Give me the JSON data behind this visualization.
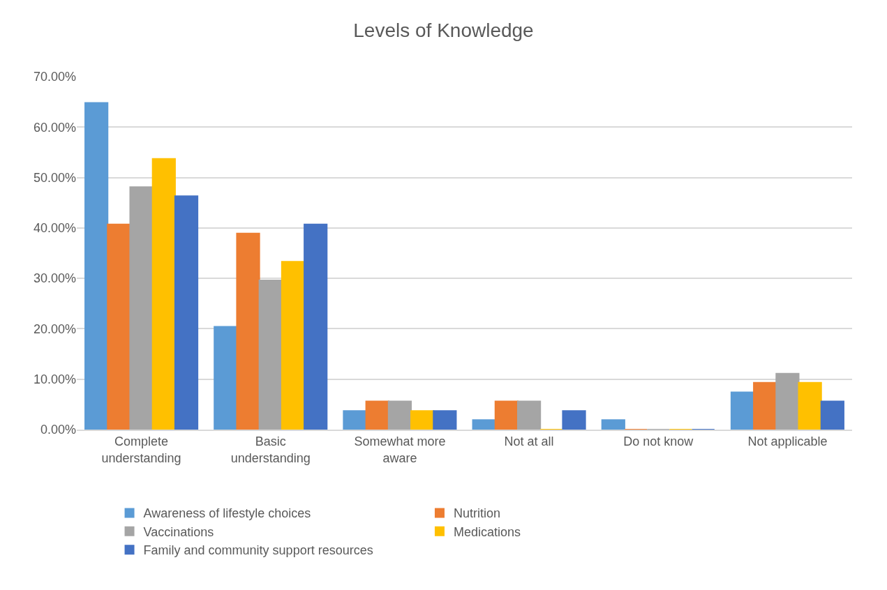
{
  "chart_data": {
    "type": "bar",
    "title": "Levels of Knowledge",
    "categories": [
      "Complete understanding",
      "Basic understanding",
      "Somewhat more aware",
      "Not at all",
      "Do not know",
      "Not applicable"
    ],
    "series": [
      {
        "name": "Awareness of lifestyle choices",
        "color": "#5b9bd5",
        "values": [
          64.8,
          20.4,
          3.7,
          1.9,
          1.9,
          7.4
        ]
      },
      {
        "name": "Nutrition",
        "color": "#ed7d31",
        "values": [
          40.7,
          38.9,
          5.6,
          5.6,
          0,
          9.3
        ]
      },
      {
        "name": "Vaccinations",
        "color": "#a5a5a5",
        "values": [
          48.1,
          29.6,
          5.6,
          5.6,
          0,
          11.1
        ]
      },
      {
        "name": "Medications",
        "color": "#ffc000",
        "values": [
          53.7,
          33.3,
          3.7,
          0,
          0,
          9.3
        ]
      },
      {
        "name": "Family and community support resources",
        "color": "#4472c4",
        "values": [
          46.3,
          40.7,
          3.7,
          3.7,
          0,
          5.6
        ]
      }
    ],
    "ylim": [
      0,
      70
    ],
    "yticks": [
      {
        "value": 0,
        "label": "0.00%"
      },
      {
        "value": 10,
        "label": "10.00%"
      },
      {
        "value": 20,
        "label": "20.00%"
      },
      {
        "value": 30,
        "label": "30.00%"
      },
      {
        "value": 40,
        "label": "40.00%"
      },
      {
        "value": 50,
        "label": "50.00%"
      },
      {
        "value": 60,
        "label": "60.00%"
      },
      {
        "value": 70,
        "label": "70.00%"
      }
    ],
    "grid": "y",
    "legend": "bottom"
  }
}
